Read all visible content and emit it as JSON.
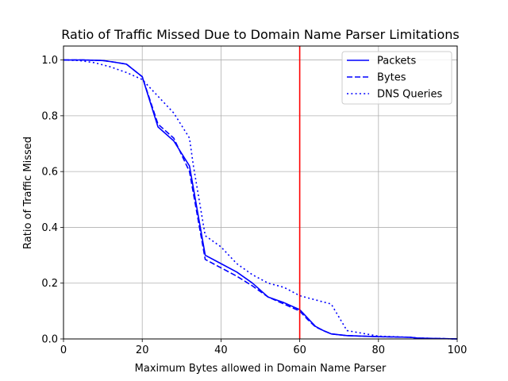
{
  "chart_data": {
    "type": "line",
    "title": "Ratio of Traffic Missed Due to Domain Name Parser Limitations",
    "xlabel": "Maximum Bytes allowed in Domain Name Parser",
    "ylabel": "Ratio of Traffic Missed",
    "xlim": [
      0,
      100
    ],
    "ylim": [
      0,
      1.05
    ],
    "xticks": [
      0,
      20,
      40,
      60,
      80,
      100
    ],
    "xtick_labels": [
      "0",
      "20",
      "40",
      "60",
      "80",
      "100"
    ],
    "yticks": [
      0.0,
      0.2,
      0.4,
      0.6,
      0.8,
      1.0
    ],
    "ytick_labels": [
      "0.0",
      "0.2",
      "0.4",
      "0.6",
      "0.8",
      "1.0"
    ],
    "grid": true,
    "legend_position": "upper-right",
    "series": [
      {
        "name": "Packets",
        "color": "#0000ff",
        "style": "solid",
        "x": [
          0,
          5,
          10,
          13,
          16,
          20,
          24,
          28,
          32,
          36,
          40,
          44,
          48,
          52,
          56,
          60,
          62,
          64,
          66,
          68,
          72,
          80,
          88,
          90,
          100
        ],
        "y": [
          1.0,
          1.0,
          0.998,
          0.992,
          0.985,
          0.94,
          0.76,
          0.71,
          0.62,
          0.3,
          0.27,
          0.24,
          0.2,
          0.15,
          0.13,
          0.105,
          0.075,
          0.045,
          0.03,
          0.018,
          0.012,
          0.008,
          0.006,
          0.003,
          0.0
        ]
      },
      {
        "name": "Bytes",
        "color": "#0000ff",
        "style": "dashed",
        "x": [
          0,
          5,
          10,
          13,
          16,
          20,
          24,
          28,
          32,
          36,
          40,
          44,
          48,
          52,
          56,
          60,
          62,
          64,
          66,
          68,
          72,
          80,
          88,
          90,
          100
        ],
        "y": [
          1.0,
          1.0,
          0.998,
          0.992,
          0.985,
          0.94,
          0.77,
          0.72,
          0.6,
          0.285,
          0.255,
          0.225,
          0.19,
          0.15,
          0.125,
          0.1,
          0.07,
          0.043,
          0.03,
          0.018,
          0.012,
          0.008,
          0.006,
          0.003,
          0.0
        ]
      },
      {
        "name": "DNS Queries",
        "color": "#0000ff",
        "style": "dotted",
        "x": [
          0,
          4,
          8,
          12,
          16,
          20,
          24,
          28,
          32,
          33,
          36,
          40,
          44,
          48,
          52,
          56,
          60,
          64,
          68,
          72,
          80,
          88,
          90,
          100
        ],
        "y": [
          1.0,
          0.998,
          0.99,
          0.975,
          0.955,
          0.93,
          0.87,
          0.81,
          0.72,
          0.62,
          0.37,
          0.33,
          0.27,
          0.23,
          0.2,
          0.185,
          0.155,
          0.14,
          0.125,
          0.03,
          0.01,
          0.006,
          0.003,
          0.0
        ]
      }
    ],
    "annotations": [
      {
        "type": "vline",
        "x": 60,
        "color": "#ff0000"
      }
    ]
  }
}
